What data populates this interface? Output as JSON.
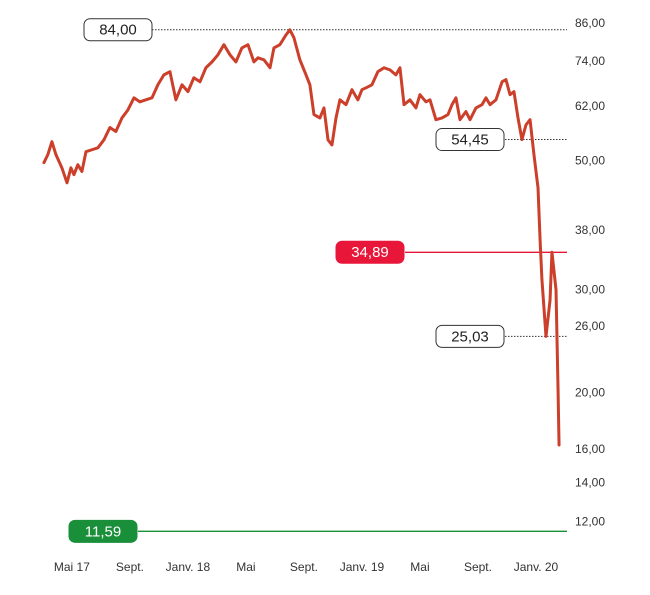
{
  "chart_data": {
    "type": "line",
    "log_scale": true,
    "color": "#cc3f2a",
    "x": [
      -1.93,
      -1.66,
      -1.38,
      -1.1,
      -0.69,
      -0.34,
      -0.07,
      0.14,
      0.41,
      0.69,
      0.97,
      1.38,
      1.79,
      2.21,
      2.62,
      3.03,
      3.45,
      3.86,
      4.28,
      4.69,
      5.1,
      5.52,
      5.93,
      6.34,
      6.76,
      7.17,
      7.59,
      8.0,
      8.41,
      8.83,
      9.24,
      9.66,
      10.07,
      10.48,
      10.9,
      11.31,
      11.72,
      12.14,
      12.55,
      12.83,
      13.24,
      13.66,
      13.93,
      14.34,
      14.76,
      15.03,
      15.31,
      15.72,
      16.14,
      16.41,
      16.69,
      17.1,
      17.38,
      17.66,
      17.93,
      18.21,
      18.48,
      18.9,
      19.31,
      19.72,
      20.0,
      20.28,
      20.69,
      21.1,
      21.52,
      21.93,
      22.34,
      22.62,
      22.9,
      23.31,
      23.72,
      24.0,
      24.41,
      24.69,
      25.1,
      25.52,
      25.93,
      26.21,
      26.48,
      26.76,
      27.17,
      27.45,
      27.86,
      28.28,
      28.55,
      28.83,
      29.24,
      29.66,
      29.93,
      30.21,
      30.48,
      30.76,
      31.03,
      31.31,
      31.59,
      31.86,
      32.14,
      32.28,
      32.41,
      32.69,
      32.97,
      33.1,
      33.38,
      33.52,
      33.59
    ],
    "values": [
      49.7,
      51.3,
      54.0,
      51.3,
      48.7,
      45.9,
      48.7,
      47.4,
      49.3,
      48.0,
      51.9,
      52.3,
      52.7,
      54.4,
      57.1,
      56.2,
      59.3,
      61.2,
      64.2,
      63.2,
      63.7,
      64.2,
      67.6,
      70.3,
      71.2,
      63.7,
      67.6,
      65.8,
      69.5,
      68.4,
      72.3,
      74.0,
      76.1,
      79.2,
      76.1,
      74.0,
      78.2,
      79.2,
      74.0,
      75.2,
      74.6,
      72.3,
      78.2,
      79.2,
      82.3,
      84.0,
      81.4,
      74.6,
      70.3,
      67.6,
      60.1,
      59.3,
      61.7,
      54.4,
      53.3,
      59.3,
      63.7,
      62.5,
      66.3,
      63.7,
      66.3,
      66.8,
      67.6,
      71.2,
      72.3,
      71.7,
      70.3,
      72.3,
      62.5,
      63.7,
      61.7,
      65.0,
      63.2,
      63.7,
      58.9,
      59.3,
      60.1,
      62.5,
      64.2,
      58.9,
      60.8,
      58.9,
      61.7,
      62.5,
      64.2,
      62.5,
      63.7,
      68.4,
      69.0,
      65.0,
      65.8,
      59.3,
      54.45,
      57.7,
      58.9,
      51.3,
      45.0,
      36.7,
      31.3,
      25.03,
      28.9,
      34.89,
      30.1,
      20.3,
      16.3
    ],
    "xlim": [
      -2.2,
      34
    ],
    "xticks": [
      {
        "value": 0,
        "label": "Mai 17"
      },
      {
        "value": 4,
        "label": "Sept."
      },
      {
        "value": 8,
        "label": "Janv. 18"
      },
      {
        "value": 12,
        "label": "Mai"
      },
      {
        "value": 16,
        "label": "Sept."
      },
      {
        "value": 20,
        "label": "Janv. 19"
      },
      {
        "value": 24,
        "label": "Mai"
      },
      {
        "value": 28,
        "label": "Sept."
      },
      {
        "value": 32,
        "label": "Janv. 20"
      }
    ],
    "ylim": [
      11.2,
      88
    ],
    "yticks": [
      {
        "value": 86,
        "label": "86,00"
      },
      {
        "value": 74,
        "label": "74,00"
      },
      {
        "value": 62,
        "label": "62,00"
      },
      {
        "value": 50,
        "label": "50,00"
      },
      {
        "value": 38,
        "label": "38,00"
      },
      {
        "value": 30,
        "label": "30,00"
      },
      {
        "value": 26,
        "label": "26,00"
      },
      {
        "value": 20,
        "label": "20,00"
      },
      {
        "value": 16,
        "label": "16,00"
      },
      {
        "value": 14,
        "label": "14,00"
      },
      {
        "value": 12,
        "label": "12,00"
      }
    ],
    "reference_lines": [
      {
        "value": 84,
        "label": "84,00",
        "style": "dotted",
        "color": "#333333"
      },
      {
        "value": 54.45,
        "label": "54,45",
        "style": "dotted",
        "color": "#333333"
      },
      {
        "value": 34.89,
        "label": "34,89",
        "style": "solid",
        "color": "#e8173a"
      },
      {
        "value": 25.03,
        "label": "25,03",
        "style": "dotted",
        "color": "#333333"
      },
      {
        "value": 11.59,
        "label": "11,59",
        "style": "solid",
        "color": "#1a8f3a"
      }
    ]
  }
}
